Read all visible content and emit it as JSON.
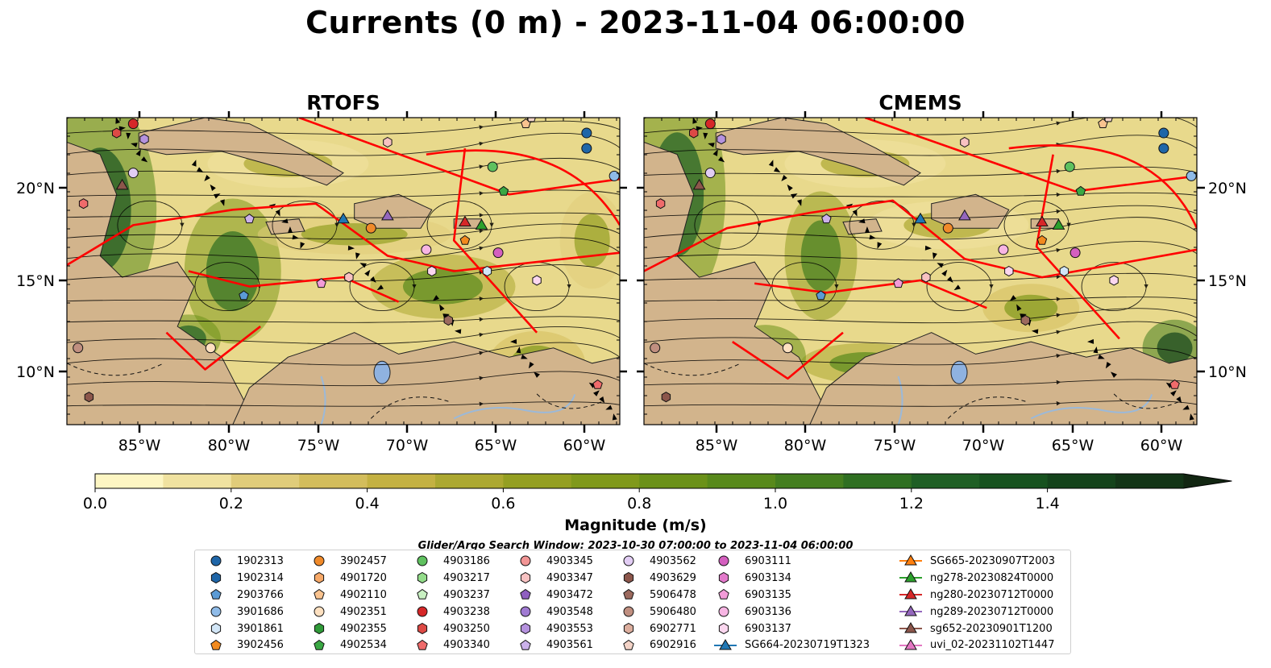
{
  "title": "Currents (0 m) - 2023-11-04 06:00:00",
  "panels": [
    {
      "title": "RTOFS"
    },
    {
      "title": "CMEMS"
    }
  ],
  "axes": {
    "x_ticks": [
      "85°W",
      "80°W",
      "75°W",
      "70°W",
      "65°W",
      "60°W"
    ],
    "y_ticks": [
      "20°N",
      "15°N",
      "10°N"
    ]
  },
  "colorbar": {
    "ticks": [
      "0.0",
      "0.2",
      "0.4",
      "0.6",
      "0.8",
      "1.0",
      "1.2",
      "1.4"
    ],
    "label": "Magnitude (m/s)",
    "colors": [
      "#fdf6c3",
      "#f0e2a0",
      "#e0cc7a",
      "#d3bd5c",
      "#c4b142",
      "#aca831",
      "#949f22",
      "#80991b",
      "#6b9119",
      "#58891b",
      "#447e1f",
      "#2f6f22",
      "#1f5f25",
      "#17521f",
      "#14431b",
      "#133517",
      "#122612"
    ]
  },
  "search_window": "Glider/Argo Search Window: 2023-10-30 07:00:00 to 2023-11-04 06:00:00",
  "legend": {
    "columns": [
      [
        {
          "label": "1902313",
          "shape": "circle",
          "color": "#1f66a8"
        },
        {
          "label": "1902314",
          "shape": "hexagon",
          "color": "#1f66a8"
        },
        {
          "label": "2903766",
          "shape": "pentagon",
          "color": "#5b9bd5"
        },
        {
          "label": "3901686",
          "shape": "circle",
          "color": "#8fbbe8"
        },
        {
          "label": "3901861",
          "shape": "hexagon",
          "color": "#d2e6f7"
        },
        {
          "label": "3902456",
          "shape": "pentagon",
          "color": "#f28a1e"
        }
      ],
      [
        {
          "label": "3902457",
          "shape": "circle",
          "color": "#f08a2a"
        },
        {
          "label": "4901720",
          "shape": "hexagon",
          "color": "#f7a968"
        },
        {
          "label": "4902110",
          "shape": "pentagon",
          "color": "#f9c38f"
        },
        {
          "label": "4902351",
          "shape": "circle",
          "color": "#fde0c0"
        },
        {
          "label": "4902355",
          "shape": "hexagon",
          "color": "#2f9a38"
        },
        {
          "label": "4902534",
          "shape": "pentagon",
          "color": "#3aa844"
        }
      ],
      [
        {
          "label": "4903186",
          "shape": "circle",
          "color": "#5fc15f"
        },
        {
          "label": "4903217",
          "shape": "hexagon",
          "color": "#93dc8a"
        },
        {
          "label": "4903237",
          "shape": "pentagon",
          "color": "#c9f0c2"
        },
        {
          "label": "4903238",
          "shape": "circle",
          "color": "#d62728"
        },
        {
          "label": "4903250",
          "shape": "hexagon",
          "color": "#dd4a45"
        },
        {
          "label": "4903340",
          "shape": "pentagon",
          "color": "#ef6b6b"
        }
      ],
      [
        {
          "label": "4903345",
          "shape": "circle",
          "color": "#f29595"
        },
        {
          "label": "4903347",
          "shape": "hexagon",
          "color": "#f8c2c2"
        },
        {
          "label": "4903472",
          "shape": "pentagon",
          "color": "#8f5fc0"
        },
        {
          "label": "4903548",
          "shape": "circle",
          "color": "#a07ad2"
        },
        {
          "label": "4903553",
          "shape": "hexagon",
          "color": "#b592de"
        },
        {
          "label": "4903561",
          "shape": "pentagon",
          "color": "#cbb1ea"
        }
      ],
      [
        {
          "label": "4903562",
          "shape": "circle",
          "color": "#e2cdf4"
        },
        {
          "label": "4903629",
          "shape": "hexagon",
          "color": "#8c564b"
        },
        {
          "label": "5906478",
          "shape": "pentagon",
          "color": "#9c6a5e"
        },
        {
          "label": "5906480",
          "shape": "circle",
          "color": "#c08f80"
        },
        {
          "label": "6902771",
          "shape": "hexagon",
          "color": "#dcae9e"
        },
        {
          "label": "6902916",
          "shape": "pentagon",
          "color": "#f3d3c7"
        }
      ],
      [
        {
          "label": "6903111",
          "shape": "circle",
          "color": "#d45fbf"
        },
        {
          "label": "6903134",
          "shape": "hexagon",
          "color": "#e37acb"
        },
        {
          "label": "6903135",
          "shape": "pentagon",
          "color": "#f29bd8"
        },
        {
          "label": "6903136",
          "shape": "circle",
          "color": "#f7b5e3"
        },
        {
          "label": "6903137",
          "shape": "hexagon",
          "color": "#fbd7ef"
        },
        {
          "label": "SG664-20230719T1323",
          "shape": "triangle-line",
          "color": "#1f77b4"
        }
      ],
      [
        {
          "label": "SG665-20230907T2003",
          "shape": "triangle-line",
          "color": "#ff7f0e"
        },
        {
          "label": "ng278-20230824T0000",
          "shape": "triangle-line",
          "color": "#2ca02c"
        },
        {
          "label": "ng280-20230712T0000",
          "shape": "triangle-line",
          "color": "#d62728"
        },
        {
          "label": "ng289-20230712T0000",
          "shape": "triangle-line",
          "color": "#9467bd"
        },
        {
          "label": "sg652-20230901T1200",
          "shape": "triangle-line",
          "color": "#8c564b"
        },
        {
          "label": "uvi_02-20231102T1447",
          "shape": "triangle-line",
          "color": "#e377c2"
        }
      ]
    ]
  }
}
